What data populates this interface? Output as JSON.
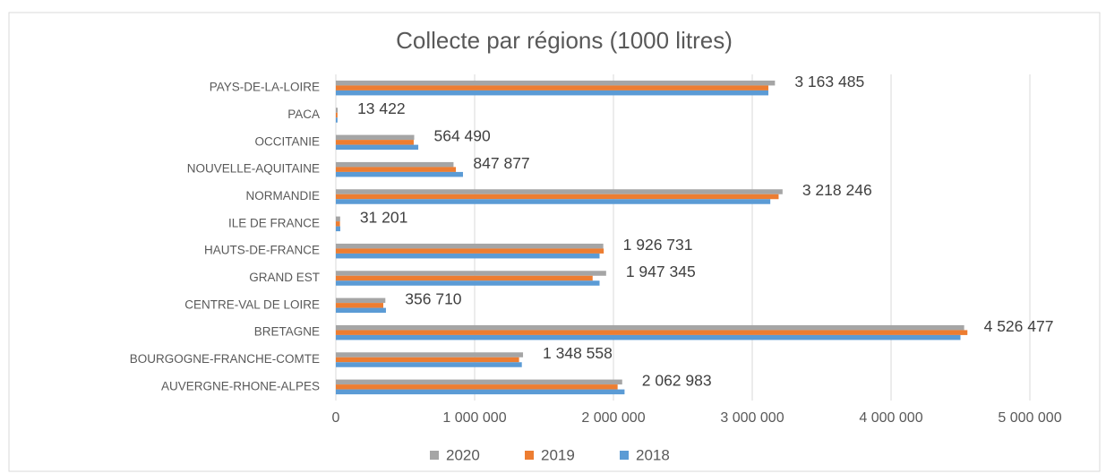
{
  "chart_data": {
    "type": "bar",
    "orientation": "horizontal",
    "title": "Collecte par régions (1000 litres)",
    "categories": [
      "PAYS-DE-LA-LOIRE",
      "PACA",
      "OCCITANIE",
      "NOUVELLE-AQUITAINE",
      "NORMANDIE",
      "ILE DE FRANCE",
      "HAUTS-DE-FRANCE",
      "GRAND EST",
      "CENTRE-VAL DE LOIRE",
      "BRETAGNE",
      "BOURGOGNE-FRANCHE-COMTE",
      "AUVERGNE-RHONE-ALPES"
    ],
    "series": [
      {
        "name": "2020",
        "color": "#a5a5a5",
        "values": [
          3163485,
          13422,
          564490,
          847877,
          3218246,
          31201,
          1926731,
          1947345,
          356710,
          4526477,
          1348558,
          2062983
        ],
        "value_labels": [
          "3 163 485",
          "13 422",
          "564 490",
          "847 877",
          "3 218 246",
          "31 201",
          "1 926 731",
          "1 947 345",
          "356 710",
          "4 526 477",
          "1 348 558",
          "2 062 983"
        ]
      },
      {
        "name": "2019",
        "color": "#ed7d31",
        "values": [
          3116000,
          12000,
          561000,
          865000,
          3190000,
          30000,
          1930000,
          1850000,
          342000,
          4550000,
          1320000,
          2030000
        ]
      },
      {
        "name": "2018",
        "color": "#5b9bd5",
        "values": [
          3116000,
          12000,
          594000,
          916000,
          3130000,
          32000,
          1900000,
          1900000,
          361000,
          4500000,
          1340000,
          2080000
        ]
      }
    ],
    "xlim": [
      0,
      5000000
    ],
    "xticks": [
      0,
      {
        "value": 1000000,
        "label": "1 000 000"
      },
      {
        "value": 2000000,
        "label": "2 000 000"
      },
      {
        "value": 3000000,
        "label": "3 000 000"
      },
      {
        "value": 4000000,
        "label": "4 000 000"
      },
      {
        "value": 5000000,
        "label": "5 000 000"
      }
    ],
    "grid": true,
    "legend": "bottom"
  }
}
